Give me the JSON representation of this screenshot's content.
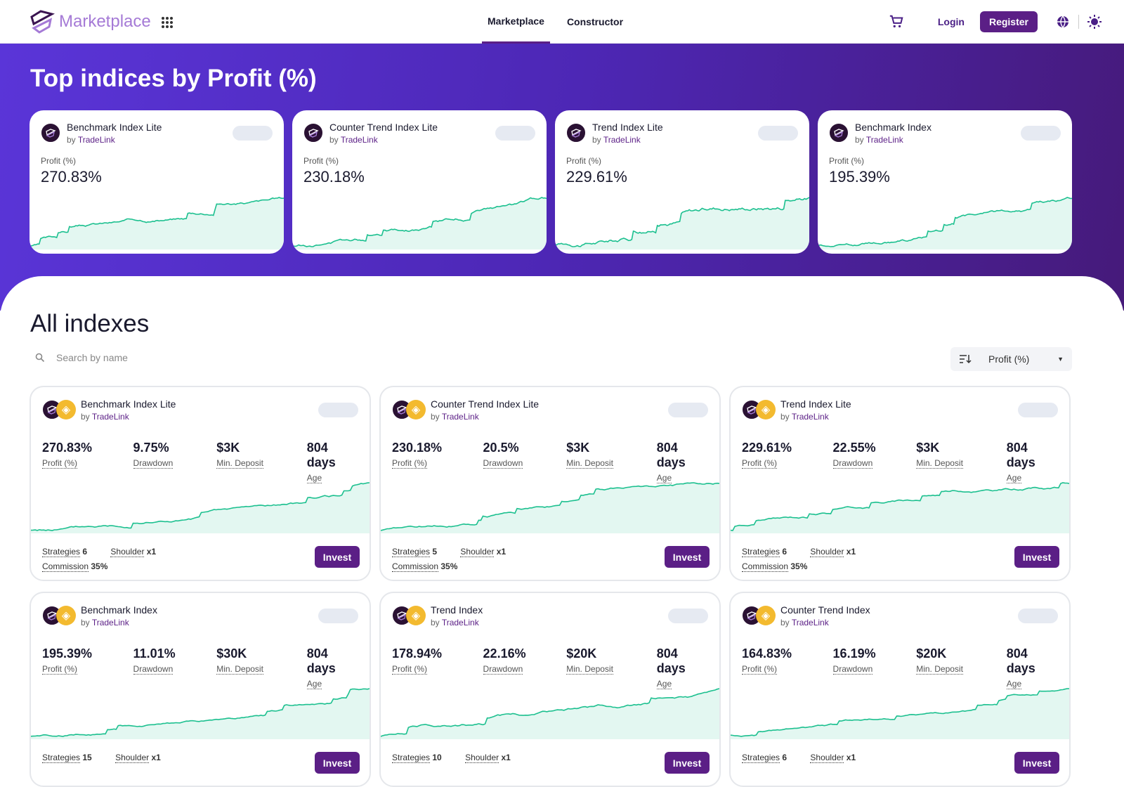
{
  "header": {
    "logo_text": "Marketplace",
    "nav": [
      {
        "label": "Marketplace",
        "active": true
      },
      {
        "label": "Constructor",
        "active": false
      }
    ],
    "login": "Login",
    "register": "Register"
  },
  "banner": {
    "title": "Top indices by Profit (%)",
    "metric_label": "Profit (%)",
    "cards": [
      {
        "name": "Benchmark Index Lite",
        "by": "by",
        "provider": "TradeLink",
        "profit": "270.83%"
      },
      {
        "name": "Counter Trend Index Lite",
        "by": "by",
        "provider": "TradeLink",
        "profit": "230.18%"
      },
      {
        "name": "Trend Index Lite",
        "by": "by",
        "provider": "TradeLink",
        "profit": "229.61%"
      },
      {
        "name": "Benchmark Index",
        "by": "by",
        "provider": "TradeLink",
        "profit": "195.39%"
      }
    ]
  },
  "main": {
    "title": "All indexes",
    "search_placeholder": "Search by name",
    "sort_value": "Profit (%)",
    "labels": {
      "profit": "Profit (%)",
      "drawdown": "Drawdown",
      "deposit": "Min. Deposit",
      "age": "Age",
      "strategies": "Strategies",
      "shoulder": "Shoulder",
      "commission": "Commission",
      "invest": "Invest"
    },
    "cards": [
      {
        "name": "Benchmark Index Lite",
        "by": "by",
        "provider": "TradeLink",
        "profit": "270.83%",
        "drawdown": "9.75%",
        "deposit": "$3K",
        "age": "804 days",
        "strategies": "6",
        "shoulder": "x1",
        "commission": "35%"
      },
      {
        "name": "Counter Trend Index Lite",
        "by": "by",
        "provider": "TradeLink",
        "profit": "230.18%",
        "drawdown": "20.5%",
        "deposit": "$3K",
        "age": "804 days",
        "strategies": "5",
        "shoulder": "x1",
        "commission": "35%"
      },
      {
        "name": "Trend Index Lite",
        "by": "by",
        "provider": "TradeLink",
        "profit": "229.61%",
        "drawdown": "22.55%",
        "deposit": "$3K",
        "age": "804 days",
        "strategies": "6",
        "shoulder": "x1",
        "commission": "35%"
      },
      {
        "name": "Benchmark Index",
        "by": "by",
        "provider": "TradeLink",
        "profit": "195.39%",
        "drawdown": "11.01%",
        "deposit": "$30K",
        "age": "804 days",
        "strategies": "15",
        "shoulder": "x1"
      },
      {
        "name": "Trend Index",
        "by": "by",
        "provider": "TradeLink",
        "profit": "178.94%",
        "drawdown": "22.16%",
        "deposit": "$20K",
        "age": "804 days",
        "strategies": "10",
        "shoulder": "x1"
      },
      {
        "name": "Counter Trend Index",
        "by": "by",
        "provider": "TradeLink",
        "profit": "164.83%",
        "drawdown": "16.19%",
        "deposit": "$20K",
        "age": "804 days",
        "strategies": "6",
        "shoulder": "x1"
      }
    ]
  },
  "colors": {
    "accent": "#5b1f86",
    "line": "#1cc08f",
    "fill": "#e3f7f1"
  }
}
